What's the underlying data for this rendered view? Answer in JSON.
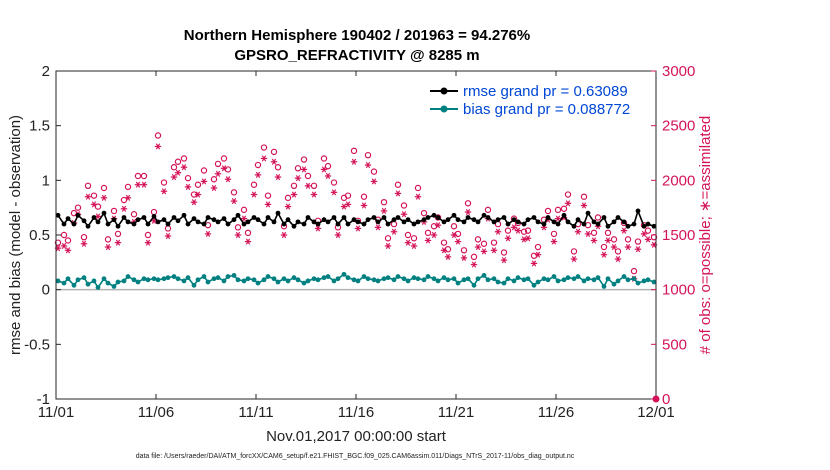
{
  "chart_data": {
    "type": "line",
    "title_line1": "Northern Hemisphere 190402 / 201963 = 94.276%",
    "title_line2": "GPSRO_REFRACTIVITY @ 8285 m",
    "xlabel": "Nov.01,2017 00:00:00 start",
    "ylabel": "rmse and bias (model - observation)",
    "ylabel_right": "# of obs: o=possible; ∗=assimilated",
    "xlim": [
      0,
      30
    ],
    "ylim": [
      -1,
      2
    ],
    "ylim_right": [
      0,
      3000
    ],
    "x_ticks": [
      0,
      5,
      10,
      15,
      20,
      25,
      30
    ],
    "x_tick_labels": [
      "11/01",
      "11/06",
      "11/11",
      "11/16",
      "11/21",
      "11/26",
      "12/01"
    ],
    "y_ticks": [
      -1,
      -0.5,
      0,
      0.5,
      1,
      1.5,
      2
    ],
    "y_tick_labels": [
      "-1",
      "-0.5",
      "0",
      "0.5",
      "1",
      "1.5",
      "2"
    ],
    "y_right_ticks": [
      0,
      500,
      1000,
      1500,
      2000,
      2500,
      3000
    ],
    "y_right_tick_labels": [
      "0",
      "500",
      "1000",
      "1500",
      "2000",
      "2500",
      "3000"
    ],
    "zero_line": 0,
    "legend": [
      "rmse grand pr = 0.63089",
      "bias grand pr = 0.088772"
    ],
    "colors": {
      "rmse": "#000000",
      "bias": "#008080",
      "obs": "#d4145a",
      "zero_line": "#b3b3b3"
    },
    "x": [
      0.1,
      0.4,
      0.6,
      0.9,
      1.1,
      1.4,
      1.6,
      1.9,
      2.1,
      2.4,
      2.6,
      2.9,
      3.1,
      3.4,
      3.6,
      3.9,
      4.1,
      4.4,
      4.6,
      4.9,
      5.1,
      5.4,
      5.6,
      5.9,
      6.1,
      6.4,
      6.6,
      6.9,
      7.1,
      7.4,
      7.6,
      7.9,
      8.1,
      8.4,
      8.6,
      8.9,
      9.1,
      9.4,
      9.6,
      9.9,
      10.1,
      10.4,
      10.6,
      10.9,
      11.1,
      11.4,
      11.6,
      11.9,
      12.1,
      12.4,
      12.6,
      12.9,
      13.1,
      13.4,
      13.6,
      13.9,
      14.1,
      14.4,
      14.6,
      14.9,
      15.1,
      15.4,
      15.6,
      15.9,
      16.1,
      16.4,
      16.6,
      16.9,
      17.1,
      17.4,
      17.6,
      17.9,
      18.1,
      18.4,
      18.6,
      18.9,
      19.1,
      19.4,
      19.6,
      19.9,
      20.1,
      20.4,
      20.6,
      20.9,
      21.1,
      21.4,
      21.6,
      21.9,
      22.1,
      22.4,
      22.6,
      22.9,
      23.1,
      23.4,
      23.6,
      23.9,
      24.1,
      24.4,
      24.6,
      24.9,
      25.1,
      25.4,
      25.6,
      25.9,
      26.1,
      26.4,
      26.6,
      26.9,
      27.1,
      27.4,
      27.6,
      27.9,
      28.1,
      28.4,
      28.6,
      28.9,
      29.1,
      29.4,
      29.6,
      29.9
    ],
    "series": [
      {
        "name": "rmse",
        "values": [
          0.68,
          0.6,
          0.65,
          0.6,
          0.68,
          0.63,
          0.58,
          0.66,
          0.62,
          0.7,
          0.6,
          0.64,
          0.58,
          0.66,
          0.62,
          0.6,
          0.64,
          0.66,
          0.6,
          0.67,
          0.62,
          0.64,
          0.6,
          0.66,
          0.63,
          0.68,
          0.6,
          0.65,
          0.62,
          0.6,
          0.66,
          0.64,
          0.62,
          0.65,
          0.6,
          0.64,
          0.68,
          0.6,
          0.62,
          0.66,
          0.64,
          0.6,
          0.66,
          0.62,
          0.7,
          0.6,
          0.64,
          0.58,
          0.62,
          0.6,
          0.66,
          0.62,
          0.6,
          0.64,
          0.62,
          0.66,
          0.6,
          0.66,
          0.6,
          0.64,
          0.62,
          0.6,
          0.64,
          0.66,
          0.62,
          0.66,
          0.6,
          0.64,
          0.66,
          0.62,
          0.64,
          0.6,
          0.62,
          0.64,
          0.66,
          0.68,
          0.66,
          0.62,
          0.64,
          0.68,
          0.64,
          0.62,
          0.66,
          0.64,
          0.62,
          0.68,
          0.66,
          0.62,
          0.64,
          0.66,
          0.6,
          0.64,
          0.62,
          0.6,
          0.64,
          0.66,
          0.62,
          0.6,
          0.66,
          0.62,
          0.6,
          0.68,
          0.62,
          0.58,
          0.64,
          0.6,
          0.7,
          0.62,
          0.6,
          0.66,
          0.58,
          0.62,
          0.66,
          0.62,
          0.58,
          0.6,
          0.72,
          0.58,
          0.6,
          0.58
        ]
      },
      {
        "name": "bias",
        "values": [
          0.08,
          0.06,
          0.1,
          0.04,
          0.09,
          0.11,
          0.05,
          0.08,
          0.02,
          0.1,
          0.06,
          0.03,
          0.07,
          0.08,
          0.12,
          0.09,
          0.07,
          0.1,
          0.09,
          0.1,
          0.09,
          0.1,
          0.11,
          0.12,
          0.1,
          0.08,
          0.11,
          0.04,
          0.09,
          0.12,
          0.07,
          0.1,
          0.11,
          0.08,
          0.12,
          0.13,
          0.09,
          0.08,
          0.1,
          0.09,
          0.06,
          0.09,
          0.12,
          0.1,
          0.07,
          0.1,
          0.08,
          0.11,
          0.09,
          0.06,
          0.08,
          0.1,
          0.09,
          0.11,
          0.12,
          0.08,
          0.1,
          0.14,
          0.11,
          0.09,
          0.08,
          0.12,
          0.1,
          0.09,
          0.08,
          0.1,
          0.11,
          0.09,
          0.12,
          0.1,
          0.08,
          0.11,
          0.1,
          0.09,
          0.12,
          0.1,
          0.08,
          0.11,
          0.09,
          0.1,
          0.06,
          0.09,
          0.1,
          0.04,
          0.1,
          0.13,
          0.09,
          0.1,
          0.07,
          0.06,
          0.1,
          0.08,
          0.11,
          0.09,
          0.1,
          0.04,
          0.07,
          0.1,
          0.09,
          0.12,
          0.08,
          0.09,
          0.11,
          0.1,
          0.12,
          0.08,
          0.1,
          0.09,
          0.11,
          0.03,
          0.1,
          0.05,
          0.08,
          0.12,
          0.09,
          0.1,
          0.06,
          0.08,
          0.09,
          0.07
        ]
      },
      {
        "name": "obs possible",
        "axis": "right",
        "values": [
          1430,
          1500,
          1450,
          1700,
          1750,
          1480,
          1950,
          1860,
          1760,
          1930,
          1460,
          1720,
          1510,
          1820,
          1940,
          1690,
          2040,
          2040,
          1500,
          1710,
          2410,
          1980,
          1560,
          2120,
          2170,
          2200,
          2020,
          1870,
          1960,
          2090,
          1590,
          2010,
          2150,
          2200,
          2100,
          1890,
          1570,
          1730,
          1520,
          1960,
          2140,
          2300,
          1860,
          2260,
          2120,
          1580,
          1840,
          1950,
          2110,
          2190,
          2040,
          1950,
          1630,
          2200,
          2130,
          1980,
          1570,
          1840,
          1860,
          2270,
          1630,
          1850,
          2230,
          2080,
          1640,
          1800,
          1470,
          1600,
          1960,
          1770,
          1500,
          1470,
          1930,
          1700,
          1520,
          1580,
          1660,
          1430,
          1370,
          1580,
          1510,
          1360,
          1790,
          1300,
          1460,
          1420,
          1730,
          1430,
          1600,
          1340,
          1540,
          1650,
          1610,
          1530,
          1540,
          1310,
          1390,
          1640,
          1720,
          1510,
          1730,
          1740,
          1870,
          1350,
          1600,
          1850,
          1590,
          1520,
          1660,
          1390,
          1520,
          1460,
          1350,
          1610,
          1460,
          1170,
          1440,
          1590,
          1540,
          1480
        ]
      },
      {
        "name": "obs assimilated",
        "axis": "right",
        "values": [
          1380,
          1400,
          1360,
          1610,
          1690,
          1420,
          1850,
          1780,
          1670,
          1840,
          1390,
          1650,
          1430,
          1740,
          1840,
          1620,
          1960,
          1960,
          1430,
          1630,
          2310,
          1900,
          1490,
          2030,
          2070,
          2120,
          1940,
          1800,
          1870,
          1990,
          1510,
          1930,
          2060,
          2110,
          2010,
          1810,
          1500,
          1650,
          1440,
          1870,
          2050,
          2200,
          1780,
          2170,
          2030,
          1500,
          1760,
          1870,
          2020,
          2100,
          1950,
          1870,
          1560,
          2100,
          2040,
          1890,
          1500,
          1760,
          1780,
          2170,
          1560,
          1770,
          2140,
          1990,
          1570,
          1720,
          1400,
          1530,
          1880,
          1690,
          1430,
          1400,
          1850,
          1620,
          1450,
          1500,
          1590,
          1360,
          1300,
          1500,
          1440,
          1290,
          1710,
          1230,
          1390,
          1350,
          1650,
          1360,
          1530,
          1270,
          1470,
          1570,
          1540,
          1460,
          1470,
          1240,
          1320,
          1570,
          1640,
          1440,
          1650,
          1660,
          1790,
          1280,
          1530,
          1770,
          1510,
          1450,
          1580,
          1320,
          1450,
          1390,
          1280,
          1540,
          1390,
          1100,
          1370,
          1510,
          1460,
          1410
        ]
      }
    ],
    "footer": "data file: /Users/raeder/DAI/ATM_forcXX/CAM6_setup/f.e21.FHIST_BGC.f09_025.CAM6assim.011/Diags_NTrS_2017-11/obs_diag_output.nc"
  }
}
